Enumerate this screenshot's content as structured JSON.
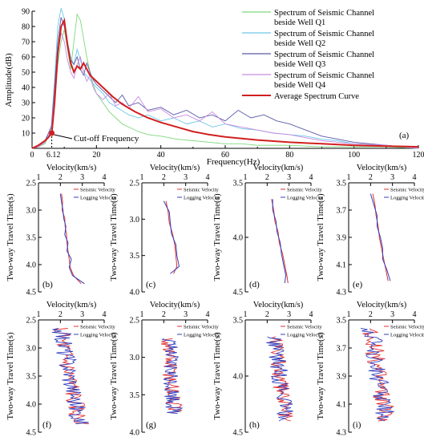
{
  "chart_data": [
    {
      "id": "a",
      "type": "line",
      "panel_label": "(a)",
      "xlabel": "Frequency(Hz)",
      "ylabel": "Amplitude(dB)",
      "xlim": [
        0,
        120
      ],
      "ylim": [
        0,
        90
      ],
      "xticks": [
        0,
        20,
        40,
        60,
        80,
        100,
        120
      ],
      "yticks": [
        0,
        10,
        20,
        30,
        40,
        50,
        60,
        70,
        80,
        90
      ],
      "legend_position": "top-right",
      "annotation": {
        "text": "Cut-off Frequency",
        "value_label": "6.12",
        "x": 6.12,
        "y": 10,
        "value_color": "#d22020"
      },
      "series": [
        {
          "name": "Spectrum of Seismic Channel beside Well Q1",
          "color": "#7dd87d",
          "x": [
            0,
            2,
            4,
            6,
            7,
            8,
            9,
            10,
            11,
            12,
            13,
            14,
            15,
            16,
            17,
            18,
            19,
            20,
            22,
            24,
            26,
            28,
            30,
            33,
            36,
            40,
            45,
            50,
            55,
            60,
            65,
            70,
            80,
            90,
            100,
            110,
            120
          ],
          "y": [
            0,
            1,
            3,
            12,
            30,
            55,
            70,
            78,
            65,
            52,
            70,
            88,
            84,
            72,
            60,
            50,
            42,
            36,
            30,
            24,
            20,
            16,
            14,
            11,
            9,
            8,
            6,
            5,
            4,
            3,
            3,
            2,
            2,
            1,
            1,
            1,
            0
          ]
        },
        {
          "name": "Spectrum of Seismic Channel beside Well Q2",
          "color": "#6cc8e8",
          "x": [
            0,
            2,
            4,
            6,
            7,
            8,
            9,
            10,
            11,
            12,
            13,
            14,
            15,
            16,
            18,
            20,
            22,
            24,
            27,
            30,
            33,
            36,
            40,
            44,
            48,
            52,
            56,
            60,
            65,
            70,
            75,
            80,
            85,
            90,
            95,
            100,
            110,
            120
          ],
          "y": [
            0,
            1,
            4,
            15,
            45,
            80,
            92,
            85,
            70,
            60,
            55,
            65,
            58,
            50,
            45,
            40,
            36,
            30,
            26,
            22,
            20,
            22,
            18,
            20,
            16,
            18,
            14,
            16,
            13,
            12,
            10,
            9,
            8,
            6,
            5,
            3,
            2,
            0
          ]
        },
        {
          "name": "Spectrum of Seismic Channel beside Well Q3",
          "color": "#5a5aa8",
          "x": [
            0,
            2,
            4,
            6,
            7,
            8,
            9,
            10,
            11,
            12,
            13,
            14,
            15,
            16,
            17,
            18,
            19,
            20,
            22,
            24,
            26,
            28,
            30,
            33,
            36,
            40,
            44,
            48,
            52,
            56,
            60,
            64,
            68,
            72,
            76,
            80,
            85,
            90,
            95,
            100,
            110,
            120
          ],
          "y": [
            0,
            2,
            5,
            14,
            40,
            70,
            86,
            80,
            68,
            58,
            55,
            60,
            52,
            48,
            56,
            50,
            45,
            42,
            38,
            34,
            30,
            35,
            28,
            30,
            25,
            27,
            22,
            25,
            20,
            22,
            18,
            25,
            20,
            22,
            18,
            16,
            12,
            8,
            6,
            4,
            2,
            0
          ]
        },
        {
          "name": "Spectrum of Seismic Channel beside Well Q4",
          "color": "#c98ae0",
          "x": [
            0,
            2,
            4,
            6,
            7,
            8,
            9,
            10,
            11,
            12,
            13,
            14,
            15,
            16,
            17,
            18,
            19,
            20,
            22,
            24,
            26,
            28,
            30,
            33,
            36,
            40,
            44,
            48,
            52,
            56,
            60,
            65,
            70,
            75,
            80,
            85,
            90,
            95,
            100,
            110,
            120
          ],
          "y": [
            0,
            1,
            4,
            12,
            35,
            62,
            76,
            70,
            58,
            50,
            46,
            55,
            60,
            50,
            44,
            48,
            40,
            36,
            32,
            36,
            28,
            30,
            26,
            34,
            24,
            26,
            20,
            22,
            18,
            24,
            16,
            14,
            12,
            10,
            9,
            7,
            5,
            4,
            3,
            2,
            0
          ]
        },
        {
          "name": "Average Spectrum Curve",
          "color": "#d11f1f",
          "x": [
            0,
            2,
            4,
            5,
            6.12,
            7,
            8,
            9,
            10,
            11,
            12,
            13,
            14,
            15,
            16,
            17,
            18,
            20,
            22,
            25,
            28,
            32,
            36,
            40,
            45,
            50,
            55,
            60,
            70,
            80,
            90,
            100,
            110,
            120
          ],
          "y": [
            0,
            2,
            5,
            7,
            10,
            30,
            62,
            80,
            84,
            68,
            56,
            50,
            54,
            52,
            56,
            52,
            48,
            44,
            40,
            34,
            29,
            24,
            20,
            17,
            14,
            11,
            9,
            7.5,
            5.5,
            4,
            3,
            2,
            1.5,
            1
          ]
        }
      ]
    },
    {
      "id": "b",
      "type": "line",
      "panel_label": "(b)",
      "xlabel": "Velocity(km/s)",
      "ylabel": "Two-way Travel Time(s)",
      "xlim": [
        1,
        4
      ],
      "ylim": [
        2.5,
        4.5
      ],
      "xticks": [
        1,
        2,
        3,
        4
      ],
      "yticks": [
        2.5,
        3.0,
        3.5,
        4.0,
        4.5
      ],
      "legend": [
        "Seismic Velocity",
        "Logging Velocity"
      ],
      "series": [
        {
          "name": "Seismic Velocity",
          "color": "#e03030",
          "t": [
            2.7,
            2.85,
            3.0,
            3.15,
            3.3,
            3.45,
            3.6,
            3.75,
            3.9,
            4.05,
            4.2,
            4.35
          ],
          "v": [
            2.05,
            2.1,
            2.08,
            2.2,
            2.22,
            2.28,
            2.3,
            2.35,
            2.4,
            2.45,
            2.6,
            2.95
          ]
        },
        {
          "name": "Logging Velocity",
          "color": "#3040c0",
          "t": [
            2.7,
            2.85,
            3.0,
            3.15,
            3.3,
            3.45,
            3.6,
            3.75,
            3.9,
            4.05,
            4.2,
            4.35
          ],
          "v": [
            2.0,
            2.05,
            2.12,
            2.15,
            2.25,
            2.2,
            2.35,
            2.3,
            2.5,
            2.4,
            2.55,
            3.1
          ]
        }
      ]
    },
    {
      "id": "c",
      "type": "line",
      "panel_label": "(c)",
      "xlabel": "Velocity(km/s)",
      "ylabel": "Two-way Travel Time(s)",
      "xlim": [
        1,
        4
      ],
      "ylim": [
        2.5,
        4.0
      ],
      "xticks": [
        1,
        2,
        3,
        4
      ],
      "yticks": [
        2.5,
        3.0,
        3.5,
        4.0
      ],
      "series": [
        {
          "name": "Seismic Velocity",
          "color": "#e03030",
          "t": [
            2.75,
            2.9,
            3.05,
            3.2,
            3.35,
            3.5,
            3.65,
            3.75
          ],
          "v": [
            2.1,
            2.2,
            2.25,
            2.4,
            2.5,
            2.55,
            2.6,
            2.45
          ]
        },
        {
          "name": "Logging Velocity",
          "color": "#3040c0",
          "t": [
            2.75,
            2.9,
            3.05,
            3.2,
            3.35,
            3.5,
            3.65,
            3.75
          ],
          "v": [
            2.0,
            2.25,
            2.3,
            2.35,
            2.55,
            2.6,
            2.7,
            2.3
          ]
        }
      ]
    },
    {
      "id": "d",
      "type": "line",
      "panel_label": "(d)",
      "xlabel": "Velocity(km/s)",
      "ylabel": "Two-way Travel Time(s)",
      "xlim": [
        1,
        4
      ],
      "ylim": [
        3.5,
        4.5
      ],
      "xticks": [
        1,
        2,
        3,
        4
      ],
      "yticks": [
        3.5,
        4.0,
        4.5
      ],
      "series": [
        {
          "name": "Seismic Velocity",
          "color": "#e03030",
          "t": [
            3.65,
            3.75,
            3.85,
            3.95,
            4.05,
            4.15,
            4.25,
            4.35,
            4.42
          ],
          "v": [
            2.2,
            2.3,
            2.35,
            2.5,
            2.55,
            2.7,
            2.8,
            2.9,
            2.95
          ]
        },
        {
          "name": "Logging Velocity",
          "color": "#3040c0",
          "t": [
            3.65,
            3.75,
            3.85,
            3.95,
            4.05,
            4.15,
            4.25,
            4.35,
            4.42
          ],
          "v": [
            2.25,
            2.25,
            2.4,
            2.45,
            2.6,
            2.65,
            2.75,
            2.85,
            2.8
          ]
        }
      ]
    },
    {
      "id": "e",
      "type": "line",
      "panel_label": "(e)",
      "xlabel": "Velocity(km/s)",
      "ylabel": "Two-way Travel Time(s)",
      "xlim": [
        1,
        4
      ],
      "ylim": [
        3.5,
        4.3
      ],
      "xticks": [
        1,
        2,
        3,
        4
      ],
      "yticks": [
        3.5,
        3.7,
        3.9,
        4.1,
        4.3
      ],
      "series": [
        {
          "name": "Seismic Velocity",
          "color": "#e03030",
          "t": [
            3.58,
            3.66,
            3.74,
            3.82,
            3.9,
            3.98,
            4.06,
            4.14,
            4.22
          ],
          "v": [
            2.1,
            2.2,
            2.25,
            2.35,
            2.4,
            2.5,
            2.6,
            2.7,
            2.8
          ]
        },
        {
          "name": "Logging Velocity",
          "color": "#3040c0",
          "t": [
            3.58,
            3.66,
            3.74,
            3.82,
            3.9,
            3.98,
            4.06,
            4.14,
            4.22
          ],
          "v": [
            2.0,
            2.15,
            2.3,
            2.3,
            2.45,
            2.55,
            2.55,
            2.75,
            2.9
          ]
        }
      ]
    },
    {
      "id": "f",
      "type": "line",
      "panel_label": "(f)",
      "xlabel": "Velocity(km/s)",
      "ylabel": "Two-way Travel Time(s)",
      "xlim": [
        1,
        4
      ],
      "ylim": [
        2.5,
        4.5
      ],
      "xticks": [
        1,
        2,
        3,
        4
      ],
      "yticks": [
        2.5,
        3.0,
        3.5,
        4.0,
        4.5
      ],
      "noisy": true,
      "t_range": [
        2.65,
        4.35
      ],
      "v_trend": [
        2.0,
        2.9
      ],
      "amp": 0.45
    },
    {
      "id": "g",
      "type": "line",
      "panel_label": "(g)",
      "xlabel": "Velocity(km/s)",
      "ylabel": "Two-way Travel Time(s)",
      "xlim": [
        1,
        4
      ],
      "ylim": [
        2.5,
        4.0
      ],
      "xticks": [
        1,
        2,
        3,
        4
      ],
      "yticks": [
        2.5,
        3.0,
        3.5,
        4.0
      ],
      "noisy": true,
      "t_range": [
        2.75,
        3.75
      ],
      "v_trend": [
        2.2,
        2.5
      ],
      "amp": 0.4
    },
    {
      "id": "h",
      "type": "line",
      "panel_label": "(h)",
      "xlabel": "Velocity(km/s)",
      "ylabel": "Two-way Travel Time(s)",
      "xlim": [
        1,
        4
      ],
      "ylim": [
        3.5,
        4.5
      ],
      "xticks": [
        1,
        2,
        3,
        4
      ],
      "yticks": [
        3.5,
        4.0,
        4.5
      ],
      "noisy": true,
      "t_range": [
        3.65,
        4.4
      ],
      "v_trend": [
        2.3,
        2.9
      ],
      "amp": 0.4
    },
    {
      "id": "i",
      "type": "line",
      "panel_label": "(i)",
      "xlabel": "Velocity(km/s)",
      "ylabel": "Two-way Travel Time(s)",
      "xlim": [
        1,
        4
      ],
      "ylim": [
        3.5,
        4.3
      ],
      "xticks": [
        1,
        2,
        3,
        4
      ],
      "yticks": [
        3.5,
        3.7,
        3.9,
        4.1,
        4.3
      ],
      "noisy": true,
      "t_range": [
        3.56,
        4.22
      ],
      "v_trend": [
        2.0,
        2.7
      ],
      "amp": 0.45
    }
  ]
}
